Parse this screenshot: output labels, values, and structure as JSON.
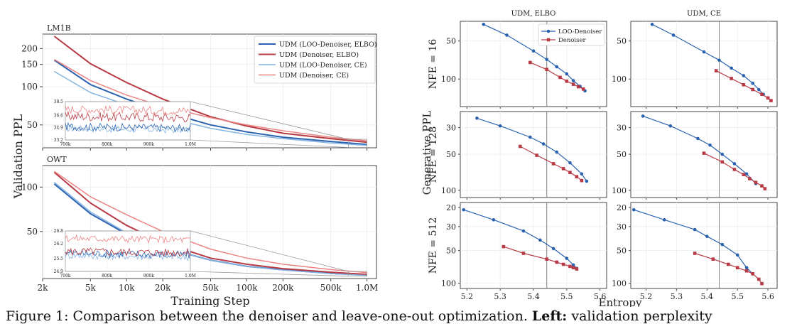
{
  "caption": {
    "part1": "Figure 1: Comparison between the denoiser and leave-one-out",
    "part2": "optimization.",
    "bold": "Left:",
    "part3": "validation perplexity"
  },
  "colors": {
    "udm_loo_elbo": "#2b62b0",
    "udm_den_elbo": "#b83a44",
    "udm_loo_ce": "#86b4e2",
    "udm_den_ce": "#ec8484",
    "loo": "#2b62b0",
    "den": "#b83a44",
    "vline": "#808080"
  },
  "left": {
    "ylabel": "Validation PPL",
    "xlabel": "Training Step",
    "xticks": [
      "2k",
      "5k",
      "10k",
      "20k",
      "50k",
      "100k",
      "200k",
      "500k",
      "1.0M"
    ],
    "legend": [
      "UDM (LOO-Denoiser, ELBO)",
      "UDM (Denoiser, ELBO)",
      "UDM (LOO-Denoiser, CE)",
      "UDM (Denoiser, CE)"
    ],
    "panels": [
      {
        "title": "LM1B",
        "yticks": [
          "200",
          "150",
          "100",
          "50"
        ],
        "inset_yticks": [
          "38.5",
          "36.6",
          "34.9",
          "33.2"
        ],
        "inset_xticks": [
          "700k",
          "800k",
          "900k",
          "1.0M"
        ]
      },
      {
        "title": "OWT",
        "yticks": [
          "100",
          "50"
        ],
        "inset_yticks": [
          "26.8",
          "26.2",
          "25.5",
          "24.9"
        ],
        "inset_xticks": [
          "700k",
          "800k",
          "900k",
          "1.0M"
        ]
      }
    ]
  },
  "right": {
    "ylabel": "Generative PPL",
    "xlabel": "Entropy",
    "col_titles": [
      "UDM, ELBO",
      "UDM, CE"
    ],
    "row_titles": [
      "NFE = 16",
      "NFE = 128",
      "NFE = 512"
    ],
    "xticks": [
      "5.2",
      "5.3",
      "5.4",
      "5.5",
      "5.6"
    ],
    "legend": [
      "LOO-Denoiser",
      "Denoiser"
    ],
    "row_yticks": [
      [
        "50",
        "100"
      ],
      [
        "30",
        "50",
        "100"
      ],
      [
        "20",
        "30",
        "50",
        "100"
      ]
    ]
  },
  "chart_data": [
    {
      "type": "line",
      "title": "LM1B",
      "xlabel": "Training Step",
      "ylabel": "Validation PPL",
      "x_scale": "log",
      "y_scale": "log",
      "ylim": [
        33,
        260
      ],
      "x": [
        2500,
        5000,
        10000,
        20000,
        50000,
        100000,
        200000,
        500000,
        1000000
      ],
      "series": [
        {
          "name": "UDM (LOO-Denoiser, ELBO)",
          "values": [
            162,
            104,
            80,
            64,
            50,
            44,
            40,
            37,
            35
          ]
        },
        {
          "name": "UDM (Denoiser, ELBO)",
          "values": [
            250,
            152,
            108,
            80,
            58,
            49,
            43,
            39,
            36.5
          ]
        },
        {
          "name": "UDM (LOO-Denoiser, CE)",
          "values": [
            132,
            90,
            72,
            58,
            47,
            42,
            39,
            36,
            34.5
          ]
        },
        {
          "name": "UDM (Denoiser, CE)",
          "values": [
            164,
            112,
            86,
            70,
            57,
            50,
            45,
            40,
            37.5
          ]
        }
      ],
      "inset": {
        "xlim": [
          700000,
          1000000
        ],
        "ylim": [
          33.2,
          38.5
        ],
        "xticks": [
          "700k",
          "800k",
          "900k",
          "1.0M"
        ],
        "yticks": [
          "38.5",
          "36.6",
          "34.9",
          "33.2"
        ]
      },
      "legend_position": "top-right",
      "grid": true
    },
    {
      "type": "line",
      "title": "OWT",
      "xlabel": "Training Step",
      "ylabel": "Validation PPL",
      "x_scale": "log",
      "y_scale": "log",
      "ylim": [
        24,
        140
      ],
      "x": [
        2500,
        5000,
        10000,
        20000,
        50000,
        100000,
        200000,
        500000,
        1000000
      ],
      "series": [
        {
          "name": "UDM (LOO-Denoiser, ELBO)",
          "values": [
            105,
            66,
            48,
            39,
            32,
            29,
            27.5,
            26,
            25.3
          ]
        },
        {
          "name": "UDM (Denoiser, ELBO)",
          "values": [
            126,
            78,
            55,
            42,
            33,
            30,
            28,
            26.5,
            25.6
          ]
        },
        {
          "name": "UDM (LOO-Denoiser, CE)",
          "values": [
            108,
            68,
            49,
            39,
            32,
            29,
            27.4,
            25.9,
            25.2
          ]
        },
        {
          "name": "UDM (Denoiser, CE)",
          "values": [
            128,
            86,
            65,
            50,
            38,
            33,
            30,
            27.6,
            26.3
          ]
        }
      ],
      "inset": {
        "xlim": [
          700000,
          1000000
        ],
        "ylim": [
          24.9,
          26.8
        ],
        "xticks": [
          "700k",
          "800k",
          "900k",
          "1.0M"
        ],
        "yticks": [
          "26.8",
          "26.2",
          "25.5",
          "24.9"
        ]
      },
      "grid": true
    },
    {
      "type": "line",
      "title": "UDM, ELBO — NFE = 16",
      "xlabel": "Entropy",
      "ylabel": "Generative PPL",
      "y_scale": "log",
      "y_inverted": true,
      "xlim": [
        5.18,
        5.62
      ],
      "ylim": [
        35,
        165
      ],
      "vline_x": 5.44,
      "series": [
        {
          "name": "LOO-Denoiser",
          "x": [
            5.25,
            5.32,
            5.4,
            5.44,
            5.47,
            5.5,
            5.52,
            5.54,
            5.555
          ],
          "y": [
            37,
            45,
            60,
            70,
            80,
            91,
            103,
            114,
            124
          ]
        },
        {
          "name": "Denoiser",
          "x": [
            5.39,
            5.44,
            5.48,
            5.5,
            5.52,
            5.535,
            5.55
          ],
          "y": [
            74,
            84,
            97,
            104,
            110,
            115,
            120
          ]
        }
      ]
    },
    {
      "type": "line",
      "title": "UDM, CE — NFE = 16",
      "xlabel": "Entropy",
      "ylabel": "Generative PPL",
      "y_scale": "log",
      "y_inverted": true,
      "xlim": [
        5.15,
        5.63
      ],
      "ylim": [
        35,
        165
      ],
      "vline_x": 5.44,
      "series": [
        {
          "name": "LOO-Denoiser",
          "x": [
            5.22,
            5.29,
            5.39,
            5.44,
            5.48,
            5.52,
            5.55,
            5.57,
            5.585
          ],
          "y": [
            37,
            45,
            61,
            71,
            82,
            94,
            108,
            121,
            132
          ]
        },
        {
          "name": "Denoiser",
          "x": [
            5.43,
            5.48,
            5.52,
            5.55,
            5.58,
            5.6,
            5.61
          ],
          "y": [
            86,
            99,
            111,
            121,
            132,
            141,
            148
          ]
        }
      ]
    },
    {
      "type": "line",
      "title": "UDM, ELBO — NFE = 128",
      "xlabel": "Entropy",
      "ylabel": "Generative PPL",
      "y_scale": "log",
      "y_inverted": true,
      "xlim": [
        5.18,
        5.62
      ],
      "ylim": [
        22,
        115
      ],
      "vline_x": 5.44,
      "series": [
        {
          "name": "LOO-Denoiser",
          "x": [
            5.23,
            5.3,
            5.39,
            5.43,
            5.47,
            5.51,
            5.545,
            5.56
          ],
          "y": [
            25,
            29,
            36,
            41,
            48,
            59,
            73,
            84
          ]
        },
        {
          "name": "Denoiser",
          "x": [
            5.36,
            5.41,
            5.46,
            5.49,
            5.51,
            5.53,
            5.545
          ],
          "y": [
            43,
            51,
            60,
            66,
            71,
            77,
            83
          ]
        }
      ]
    },
    {
      "type": "line",
      "title": "UDM, CE — NFE = 128",
      "xlabel": "Entropy",
      "ylabel": "Generative PPL",
      "y_scale": "log",
      "y_inverted": true,
      "xlim": [
        5.15,
        5.63
      ],
      "ylim": [
        22,
        115
      ],
      "vline_x": 5.44,
      "series": [
        {
          "name": "LOO-Denoiser",
          "x": [
            5.19,
            5.28,
            5.37,
            5.41,
            5.45,
            5.49,
            5.53,
            5.56
          ],
          "y": [
            24,
            29,
            37,
            42,
            50,
            60,
            73,
            88
          ]
        },
        {
          "name": "Denoiser",
          "x": [
            5.39,
            5.45,
            5.49,
            5.52,
            5.54,
            5.56,
            5.58,
            5.59
          ],
          "y": [
            49,
            58,
            67,
            74,
            80,
            86,
            92,
            97
          ]
        }
      ]
    },
    {
      "type": "line",
      "title": "UDM, ELBO — NFE = 512",
      "xlabel": "Entropy",
      "ylabel": "Generative PPL",
      "y_scale": "log",
      "y_inverted": true,
      "xlim": [
        5.18,
        5.62
      ],
      "ylim": [
        18,
        112
      ],
      "vline_x": 5.44,
      "series": [
        {
          "name": "LOO-Denoiser",
          "x": [
            5.19,
            5.28,
            5.37,
            5.42,
            5.46,
            5.5,
            5.52,
            5.53
          ],
          "y": [
            21,
            26,
            33,
            40,
            48,
            59,
            68,
            73
          ]
        },
        {
          "name": "Denoiser",
          "x": [
            5.31,
            5.37,
            5.44,
            5.47,
            5.49,
            5.51,
            5.52,
            5.53
          ],
          "y": [
            46,
            53,
            60,
            64,
            67,
            70,
            72,
            74
          ]
        }
      ]
    },
    {
      "type": "line",
      "title": "UDM, CE — NFE = 512",
      "xlabel": "Entropy",
      "ylabel": "Generative PPL",
      "y_scale": "log",
      "y_inverted": true,
      "xlim": [
        5.15,
        5.63
      ],
      "ylim": [
        18,
        112
      ],
      "vline_x": 5.44,
      "series": [
        {
          "name": "LOO-Denoiser",
          "x": [
            5.16,
            5.26,
            5.36,
            5.4,
            5.45,
            5.5,
            5.53,
            5.55
          ],
          "y": [
            21,
            26,
            32,
            37,
            44,
            55,
            72,
            82
          ]
        },
        {
          "name": "Denoiser",
          "x": [
            5.36,
            5.42,
            5.47,
            5.5,
            5.53,
            5.55,
            5.57,
            5.58
          ],
          "y": [
            53,
            60,
            67,
            72,
            77,
            82,
            92,
            101
          ]
        }
      ]
    }
  ]
}
